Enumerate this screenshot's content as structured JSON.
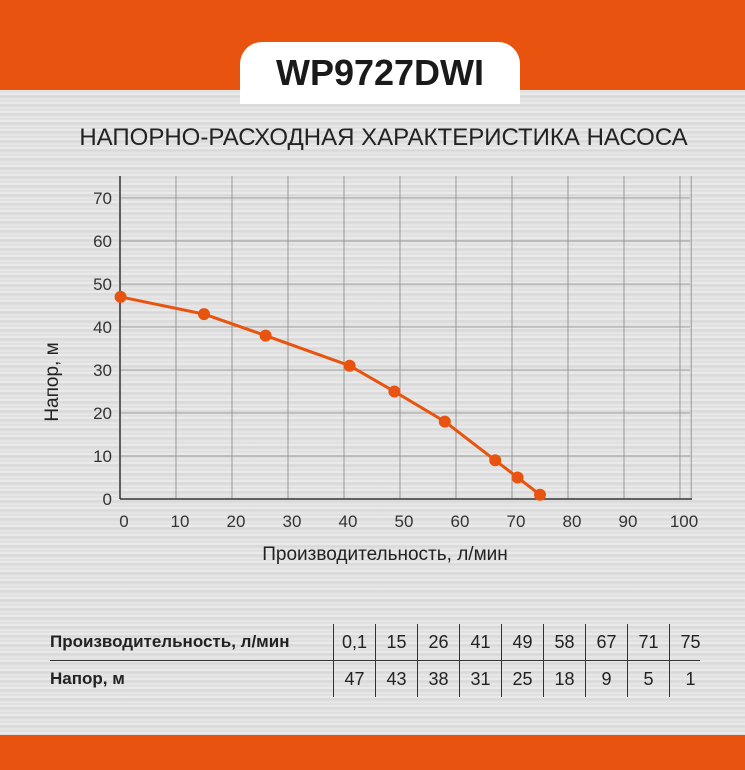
{
  "title": "WP9727DWI",
  "subtitle": "НАПОРНО-РАСХОДНАЯ ХАРАКТЕРИСТИКА НАСОСА",
  "colors": {
    "accent": "#e8540f"
  },
  "chart_data": {
    "type": "line",
    "xlabel": "Производительность, л/мин",
    "ylabel": "Напор, м",
    "xlim": [
      0,
      100
    ],
    "ylim": [
      0,
      70
    ],
    "xticks": [
      "0",
      "10",
      "20",
      "30",
      "40",
      "50",
      "60",
      "70",
      "80",
      "90",
      "100"
    ],
    "yticks": [
      "0",
      "10",
      "20",
      "30",
      "40",
      "50",
      "60",
      "70"
    ],
    "grid": true,
    "x": [
      0.1,
      15,
      26,
      41,
      49,
      58,
      67,
      71,
      75
    ],
    "y": [
      47,
      43,
      38,
      31,
      25,
      18,
      9,
      5,
      1
    ]
  },
  "table": {
    "row1_label": "Производительность, л/мин",
    "row1": [
      "0,1",
      "15",
      "26",
      "41",
      "49",
      "58",
      "67",
      "71",
      "75"
    ],
    "row2_label": "Напор, м",
    "row2": [
      "47",
      "43",
      "38",
      "31",
      "25",
      "18",
      "9",
      "5",
      "1"
    ]
  }
}
